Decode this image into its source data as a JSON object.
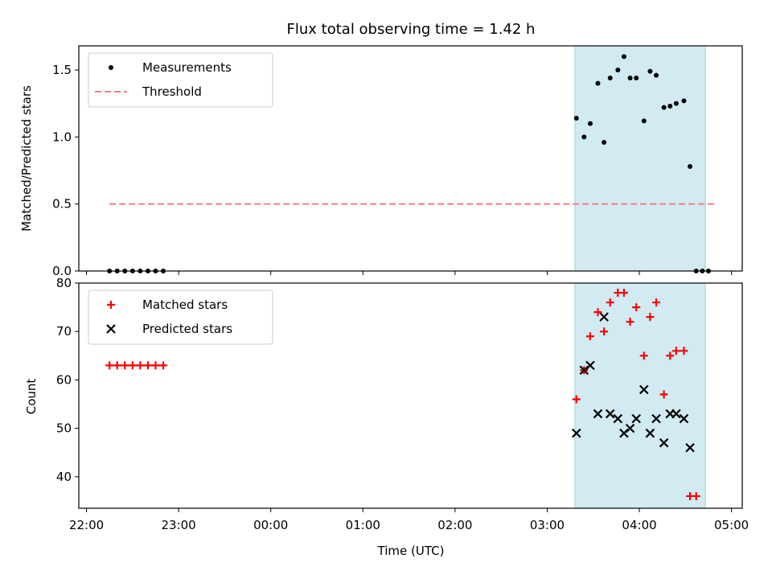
{
  "title": "Flux total observing time = 1.42 h",
  "colors": {
    "highlight": "#add8e6",
    "matched": "#ff0000",
    "predicted": "#000000",
    "threshold": "#f08080",
    "measurements": "#000000"
  },
  "chart_data": [
    {
      "type": "scatter",
      "panel": "top",
      "ylabel": "Matched/Predicted stars",
      "xlim": [
        "21:55",
        "05:07"
      ],
      "ylim": [
        0,
        1.68
      ],
      "yticks": [
        0.0,
        0.5,
        1.0,
        1.5
      ],
      "ytick_labels": [
        "0.0",
        "0.5",
        "1.0",
        "1.5"
      ],
      "grid": false,
      "legend_position": "top-left",
      "highlight_span": [
        "03:18",
        "04:43"
      ],
      "series": [
        {
          "name": "Measurements",
          "marker": "dot",
          "x": [
            "22:15",
            "22:20",
            "22:25",
            "22:30",
            "22:35",
            "22:40",
            "22:45",
            "22:50",
            "03:19",
            "03:24",
            "03:28",
            "03:33",
            "03:37",
            "03:41",
            "03:46",
            "03:50",
            "03:54",
            "03:58",
            "04:03",
            "04:07",
            "04:11",
            "04:16",
            "04:20",
            "04:24",
            "04:29",
            "04:33",
            "04:37",
            "04:41",
            "04:45"
          ],
          "y": [
            0,
            0,
            0,
            0,
            0,
            0,
            0,
            0,
            1.14,
            1.0,
            1.1,
            1.4,
            0.96,
            1.44,
            1.5,
            1.6,
            1.44,
            1.44,
            1.12,
            1.49,
            1.46,
            1.22,
            1.23,
            1.25,
            1.27,
            0.78,
            0,
            0,
            0
          ]
        },
        {
          "name": "Threshold",
          "style": "dashed",
          "x": [
            "22:15",
            "04:49"
          ],
          "y": [
            0.5,
            0.5
          ]
        }
      ]
    },
    {
      "type": "scatter",
      "panel": "bottom",
      "xlabel": "Time (UTC)",
      "ylabel": "Count",
      "xlim": [
        "21:55",
        "05:07"
      ],
      "ylim": [
        33.5,
        80
      ],
      "yticks": [
        40,
        50,
        60,
        70,
        80
      ],
      "ytick_labels": [
        "40",
        "50",
        "60",
        "70",
        "80"
      ],
      "xticks": [
        "22:00",
        "23:00",
        "00:00",
        "01:00",
        "02:00",
        "03:00",
        "04:00",
        "05:00"
      ],
      "grid": false,
      "legend_position": "top-left",
      "highlight_span": [
        "03:18",
        "04:43"
      ],
      "series": [
        {
          "name": "Matched stars",
          "marker": "plus",
          "x": [
            "22:15",
            "22:20",
            "22:25",
            "22:30",
            "22:35",
            "22:40",
            "22:45",
            "22:50",
            "03:19",
            "03:24",
            "03:28",
            "03:33",
            "03:37",
            "03:41",
            "03:46",
            "03:50",
            "03:54",
            "03:58",
            "04:03",
            "04:07",
            "04:11",
            "04:16",
            "04:20",
            "04:24",
            "04:29",
            "04:33",
            "04:37",
            "04:41",
            "04:45",
            "04:49"
          ],
          "y": [
            63,
            63,
            63,
            63,
            63,
            63,
            63,
            63,
            56,
            62,
            69,
            74,
            70,
            76,
            78,
            78,
            72,
            75,
            65,
            73,
            76,
            57,
            65,
            66,
            66,
            36,
            36,
            null,
            null,
            null
          ]
        },
        {
          "name": "Predicted stars",
          "marker": "x",
          "x": [
            "03:19",
            "03:24",
            "03:28",
            "03:33",
            "03:37",
            "03:41",
            "03:46",
            "03:50",
            "03:54",
            "03:58",
            "04:03",
            "04:07",
            "04:11",
            "04:16",
            "04:20",
            "04:24",
            "04:29",
            "04:33",
            "04:37",
            "04:41"
          ],
          "y": [
            49,
            62,
            63,
            53,
            73,
            53,
            52,
            49,
            50,
            52,
            58,
            49,
            52,
            47,
            53,
            53,
            52,
            46,
            null,
            null
          ]
        }
      ]
    }
  ]
}
